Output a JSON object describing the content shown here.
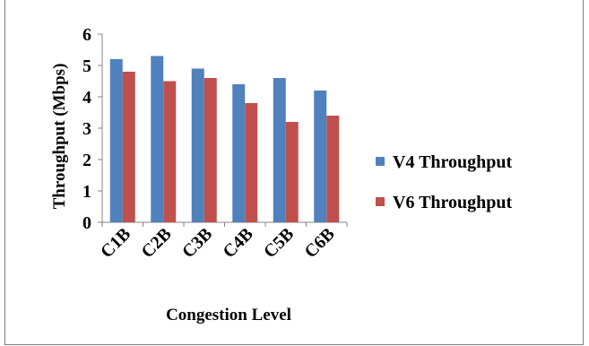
{
  "chart_data": {
    "type": "bar",
    "title": "",
    "xlabel": "Congestion Level",
    "ylabel": "Throughput (Mbps)",
    "categories": [
      "C1B",
      "C2B",
      "C3B",
      "C4B",
      "C5B",
      "C6B"
    ],
    "series": [
      {
        "name": "V4 Throughput",
        "values": [
          5.2,
          5.3,
          4.9,
          4.4,
          4.6,
          4.2
        ],
        "color": "#4f81bd"
      },
      {
        "name": "V6 Throughput",
        "values": [
          4.8,
          4.5,
          4.6,
          3.8,
          3.2,
          3.4
        ],
        "color": "#c0504d"
      }
    ],
    "ylim": [
      0,
      6
    ],
    "yticks": [
      0,
      1,
      2,
      3,
      4,
      5,
      6
    ],
    "grid": false,
    "legend": "right"
  }
}
